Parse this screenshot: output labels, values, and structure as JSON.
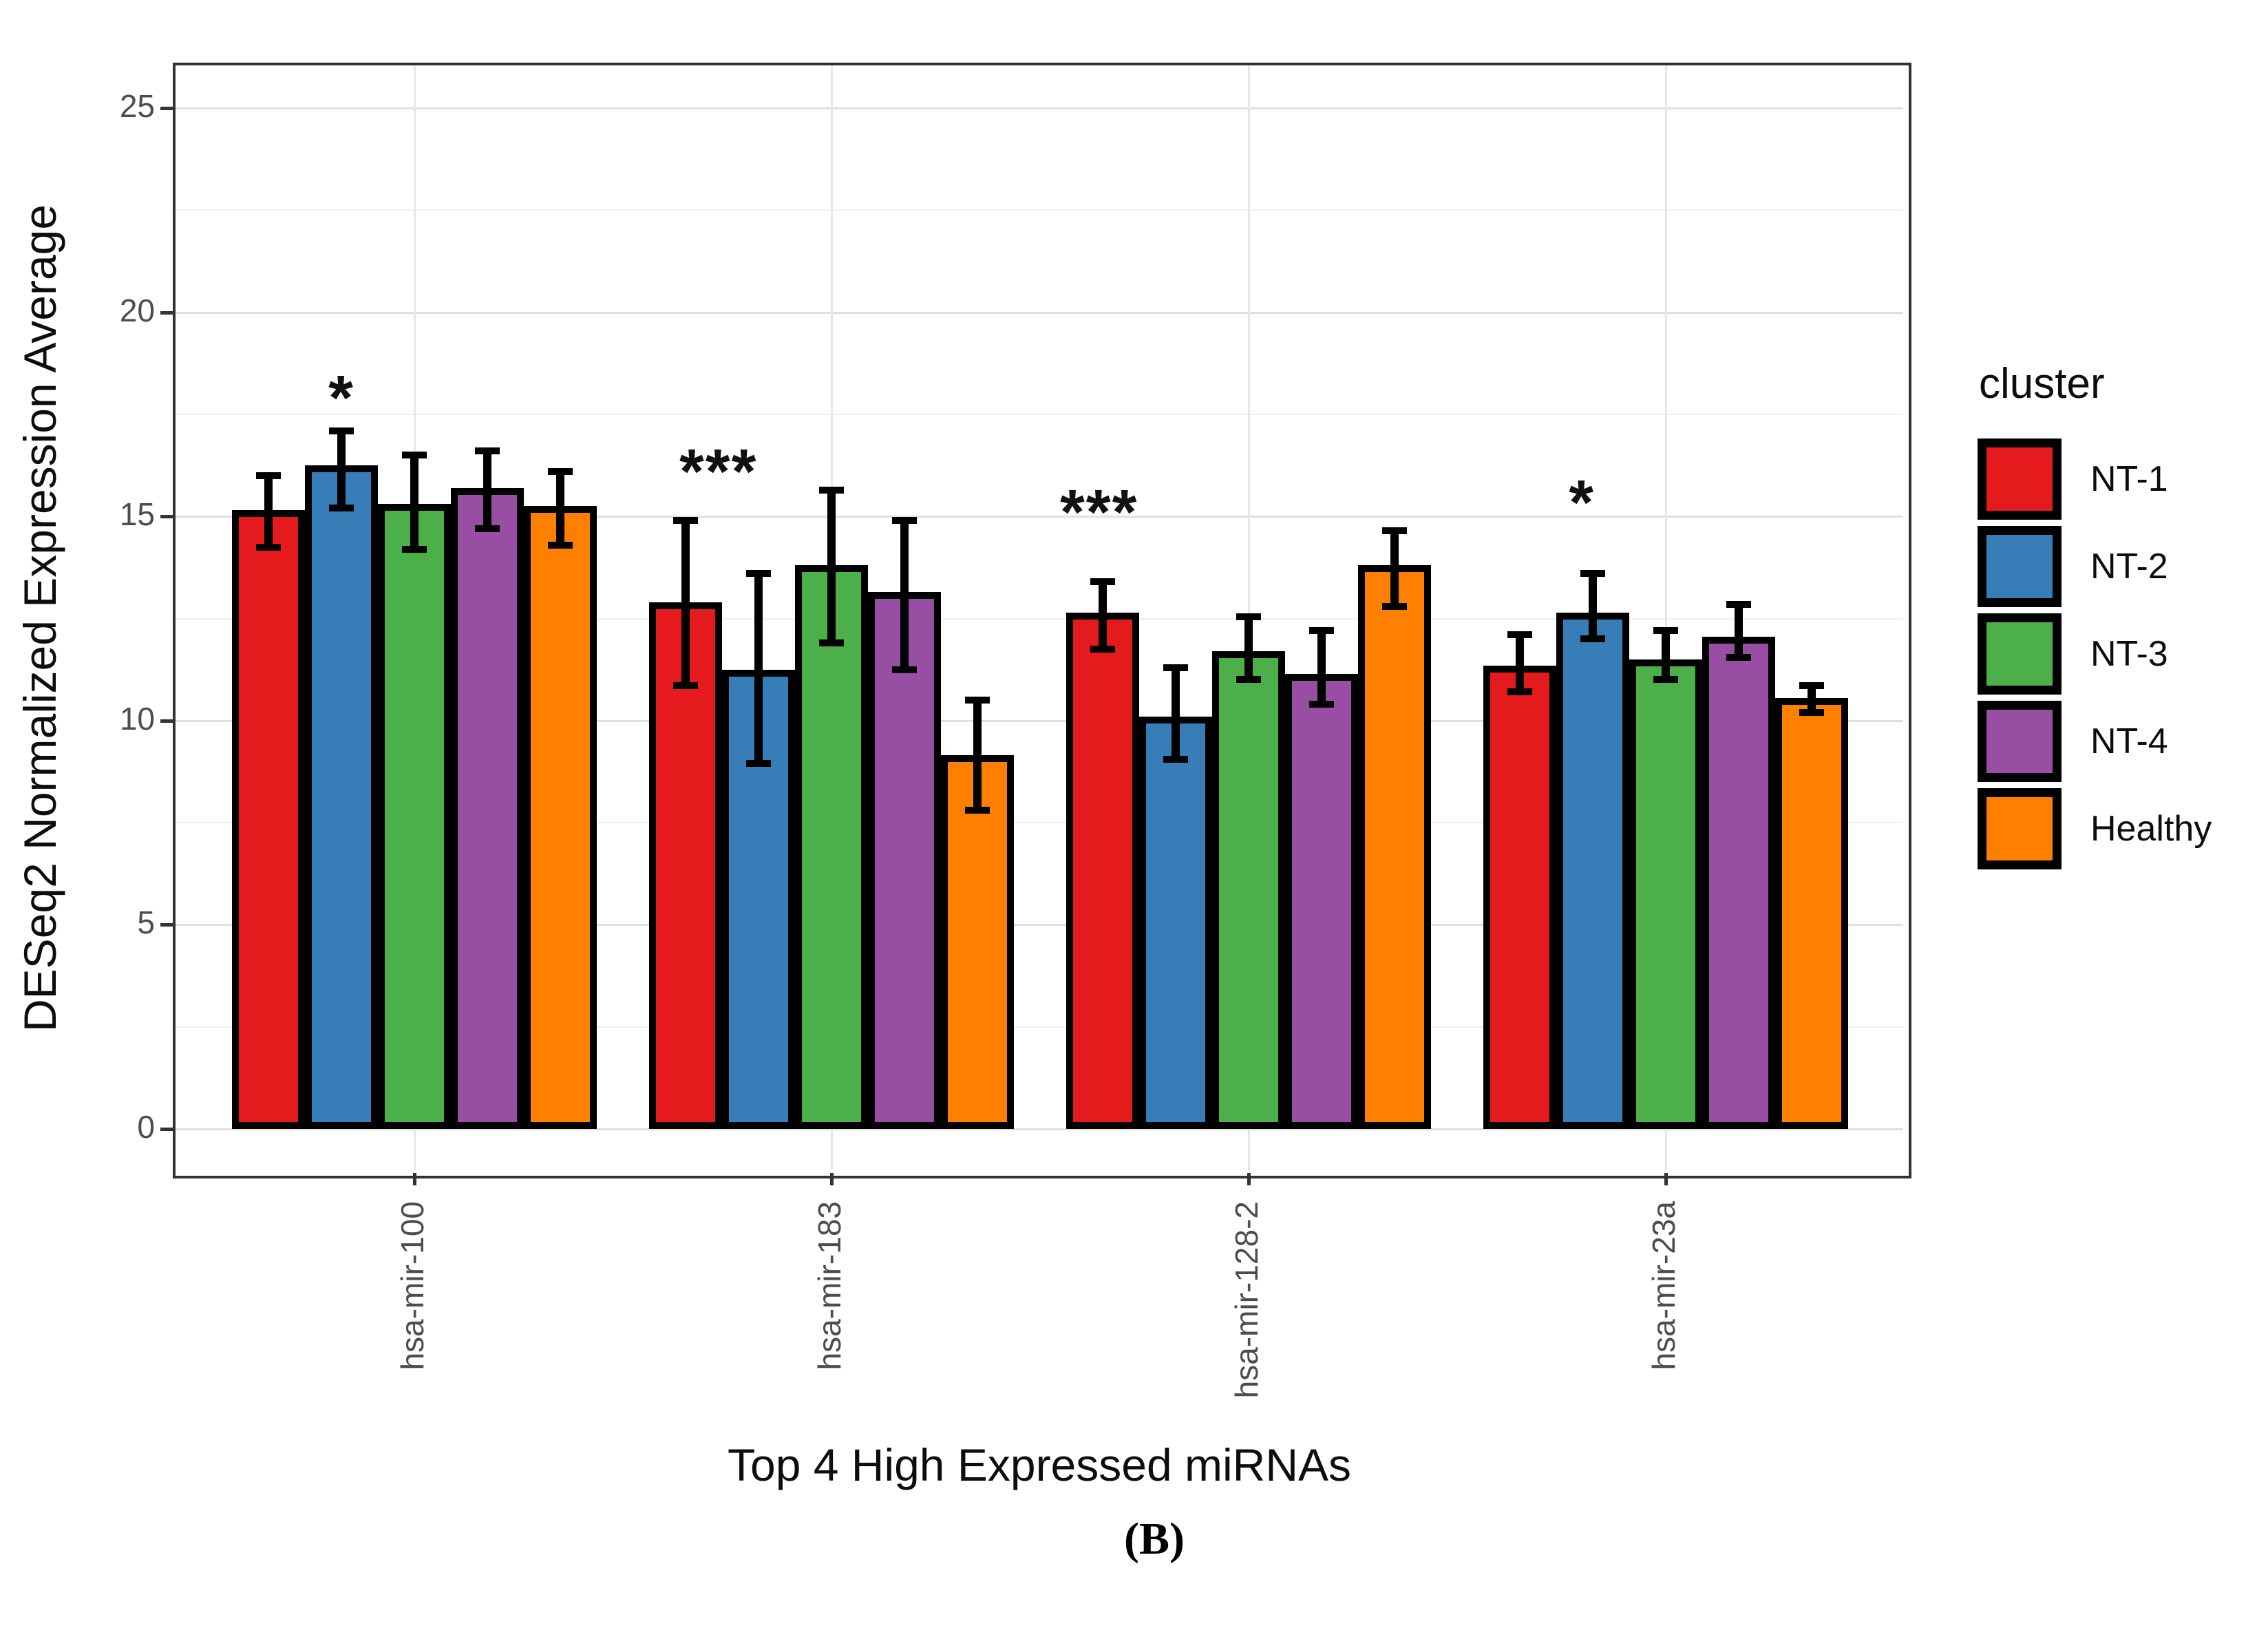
{
  "figure": {
    "caption": "(B)",
    "x_axis_title": "Top 4 High Expressed miRNAs",
    "y_axis_title": "DESeq2 Normalized Expression Average",
    "legend_title": "cluster"
  },
  "chart_data": {
    "type": "bar",
    "title": "",
    "xlabel": "Top 4 High Expressed miRNAs",
    "ylabel": "DESeq2 Normalized Expression Average",
    "categories": [
      "hsa-mir-100",
      "hsa-mir-183",
      "hsa-mir-128-2",
      "hsa-mir-23a"
    ],
    "y_tick_labels": [
      "0",
      "5",
      "10",
      "15",
      "20",
      "25"
    ],
    "y_ticks": [
      0,
      5,
      10,
      15,
      20,
      25
    ],
    "y_minor_gridlines": [
      2.5,
      7.5,
      12.5,
      17.5,
      22.5
    ],
    "ylim": [
      -1,
      26.1
    ],
    "grid": "horizontal major+minor, vertical major at group centers",
    "legend_position": "right",
    "legend_title": "cluster",
    "bar_outline_color": "#000000",
    "errorbars": true,
    "series": [
      {
        "name": "NT-1",
        "color": "#E41A1C",
        "values": [
          15.15,
          12.9,
          12.65,
          11.35
        ],
        "err_low": [
          14.25,
          10.85,
          11.75,
          10.7
        ],
        "err_high": [
          16.0,
          14.9,
          13.4,
          12.1
        ]
      },
      {
        "name": "NT-2",
        "color": "#377EB8",
        "values": [
          16.25,
          11.25,
          10.1,
          12.65
        ],
        "err_low": [
          15.2,
          8.95,
          9.05,
          12.0
        ],
        "err_high": [
          17.1,
          13.6,
          11.3,
          13.6
        ]
      },
      {
        "name": "NT-3",
        "color": "#4DAF4A",
        "values": [
          15.3,
          13.8,
          11.7,
          11.5
        ],
        "err_low": [
          14.2,
          11.9,
          11.0,
          11.0
        ],
        "err_high": [
          16.5,
          15.65,
          12.55,
          12.2
        ]
      },
      {
        "name": "NT-4",
        "color": "#984EA3",
        "values": [
          15.7,
          13.15,
          11.15,
          12.05
        ],
        "err_low": [
          14.7,
          11.25,
          10.4,
          11.55
        ],
        "err_high": [
          16.6,
          14.9,
          12.2,
          12.85
        ]
      },
      {
        "name": "Healthy",
        "color": "#FF7F00",
        "values": [
          15.25,
          9.15,
          13.8,
          10.55
        ],
        "err_low": [
          14.3,
          7.8,
          12.8,
          10.2
        ],
        "err_high": [
          16.1,
          10.5,
          14.65,
          10.85
        ]
      }
    ],
    "significance": [
      {
        "category": "hsa-mir-100",
        "label": "*",
        "bar_position": 1.5,
        "y": 18.2
      },
      {
        "category": "hsa-mir-183",
        "label": "***",
        "bar_position": 0.95,
        "y": 16.4
      },
      {
        "category": "hsa-mir-128-2",
        "label": "***",
        "bar_position": 0.45,
        "y": 15.4
      },
      {
        "category": "hsa-mir-23a",
        "label": "*",
        "bar_position": 1.35,
        "y": 15.65
      }
    ]
  }
}
